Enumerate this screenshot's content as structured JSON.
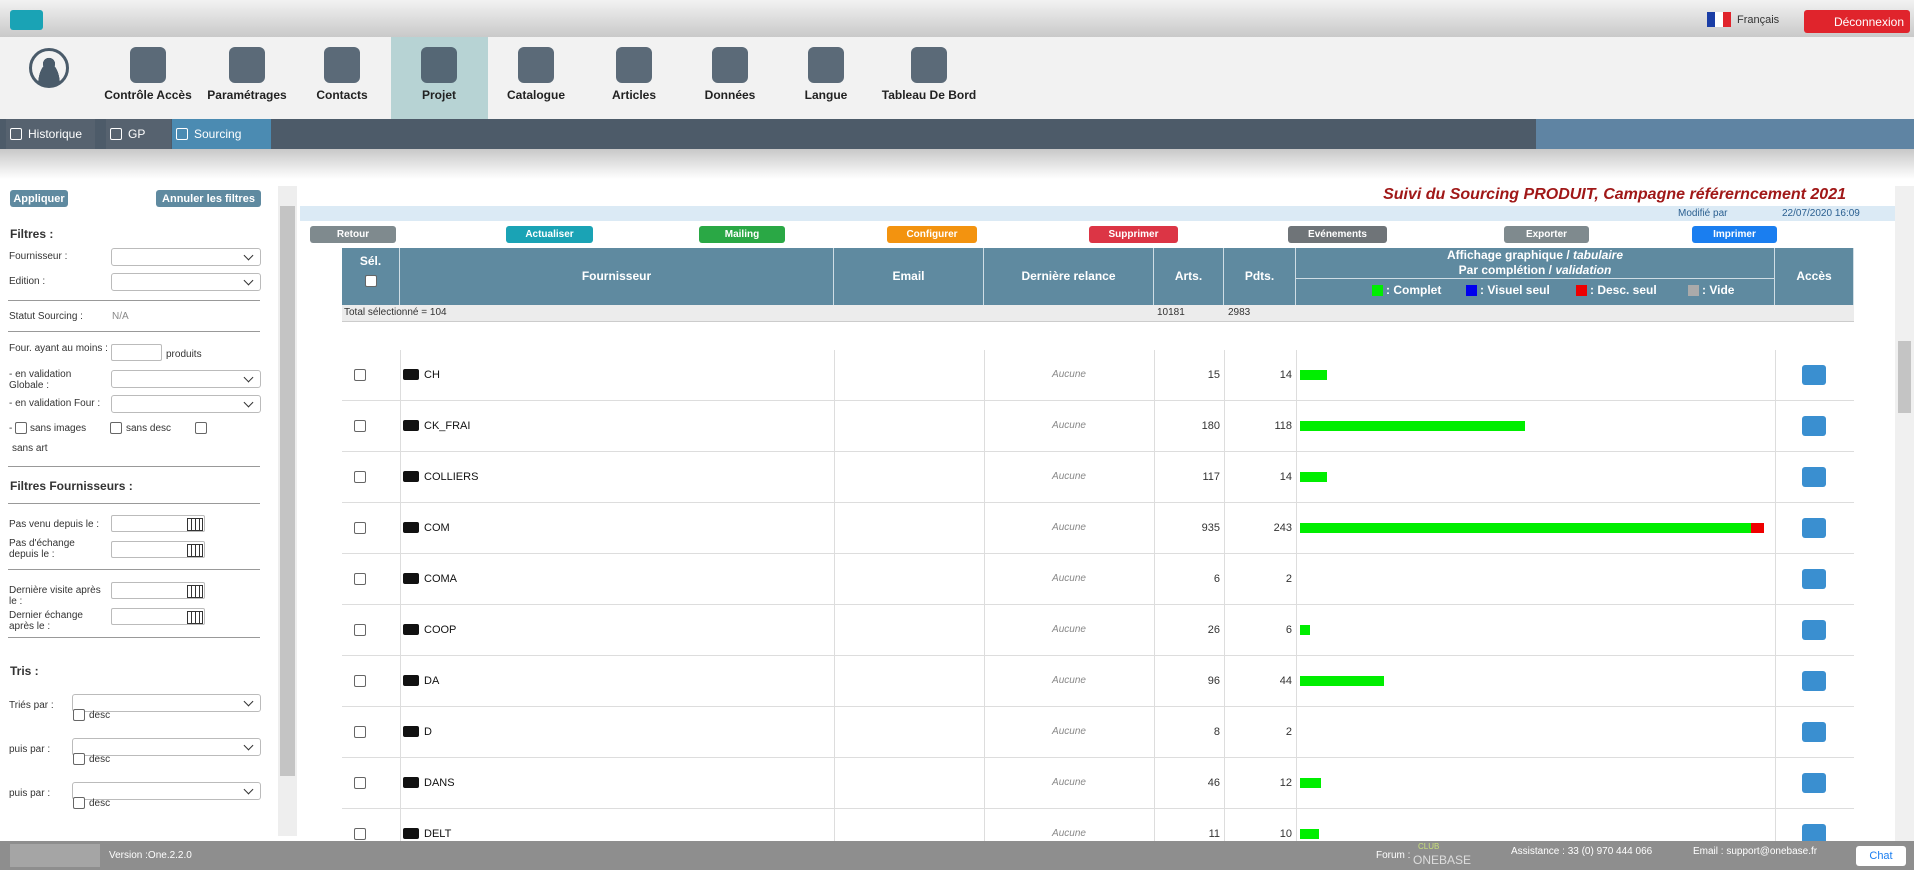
{
  "top_bar": {
    "language": "Français",
    "logout": "Déconnexion"
  },
  "nav": {
    "items": [
      "Contrôle Accès",
      "Paramétrages",
      "Contacts",
      "Projet",
      "Catalogue",
      "Articles",
      "Données",
      "Langue",
      "Tableau De Bord"
    ],
    "active_index": 3
  },
  "subnav": {
    "items": [
      "Historique",
      "GP",
      "Sourcing"
    ],
    "active_index": 2
  },
  "filters": {
    "apply": "Appliquer",
    "cancel": "Annuler les filtres",
    "title": "Filtres :",
    "supplier": "Fournisseur :",
    "edition": "Edition :",
    "status": "Statut Sourcing :",
    "status_value": "N/A",
    "min_products": "Four. ayant au moins :",
    "products": "produits",
    "global_validation": "- en validation Globale :",
    "supplier_validation": "- en validation Four :",
    "dash": "-",
    "no_images": "sans images",
    "no_desc": "sans desc",
    "no_art": "sans art",
    "supplier_filters": "Filtres Fournisseurs :",
    "not_came": "Pas venu depuis le :",
    "no_exchange": "Pas d'échange depuis le :",
    "last_visit": "Dernière visite après le :",
    "last_exchange": "Dernier échange après le :",
    "sorts": "Tris :",
    "sorted_by": "Triés par :",
    "then_by": "puis par :",
    "desc": "desc"
  },
  "main": {
    "title": "Suivi du Sourcing PRODUIT, Campagne référerncement 2021",
    "modified_by": "Modifié par",
    "modified_date": "22/07/2020 16:09",
    "buttons": [
      {
        "label": "Retour",
        "color": "#7f8a8e"
      },
      {
        "label": "Actualiser",
        "color": "#1aa3b5"
      },
      {
        "label": "Mailing",
        "color": "#2aa845"
      },
      {
        "label": "Configurer",
        "color": "#f3930f"
      },
      {
        "label": "Supprimer",
        "color": "#dc3545"
      },
      {
        "label": "Evénements",
        "color": "#6f7478"
      },
      {
        "label": "Exporter",
        "color": "#7f8a8e"
      },
      {
        "label": "Imprimer",
        "color": "#1a7ef0"
      }
    ]
  },
  "table": {
    "headers": {
      "select": "Sél.",
      "supplier": "Fournisseur",
      "email": "Email",
      "last_reminder": "Dernière relance",
      "arts": "Arts.",
      "pdts": "Pdts.",
      "graph_line1": "Affichage graphique / ",
      "graph_line1_italic": "tabulaire",
      "graph_line2": "Par complétion / ",
      "graph_line2_italic": "validation",
      "access": "Accès"
    },
    "legend": [
      {
        "name": ": Complet",
        "color": "#00ee00"
      },
      {
        "name": ": Visuel seul",
        "color": "#0000ee"
      },
      {
        "name": ": Desc. seul",
        "color": "#ee0000"
      },
      {
        "name": ": Vide",
        "color": "#aaaaaa"
      }
    ],
    "total_label": "Total sélectionné = 104",
    "total_arts": 10181,
    "total_pdts": 2983,
    "rows": [
      {
        "name": "CH",
        "relance": "Aucune",
        "arts": 15,
        "pdts": 14,
        "complet": 14,
        "desc": 0
      },
      {
        "name": "CK_FRAI",
        "relance": "Aucune",
        "arts": 180,
        "pdts": 118,
        "complet": 118,
        "desc": 0
      },
      {
        "name": "COLLIERS",
        "relance": "Aucune",
        "arts": 117,
        "pdts": 14,
        "complet": 14,
        "desc": 0
      },
      {
        "name": "COM",
        "relance": "Aucune",
        "arts": 935,
        "pdts": 243,
        "complet": 236,
        "desc": 7
      },
      {
        "name": "COMA",
        "relance": "Aucune",
        "arts": 6,
        "pdts": 2,
        "complet": 0,
        "desc": 0
      },
      {
        "name": "COOP",
        "relance": "Aucune",
        "arts": 26,
        "pdts": 6,
        "complet": 5,
        "desc": 0
      },
      {
        "name": "DA",
        "relance": "Aucune",
        "arts": 96,
        "pdts": 44,
        "complet": 44,
        "desc": 0
      },
      {
        "name": "D",
        "relance": "Aucune",
        "arts": 8,
        "pdts": 2,
        "complet": 0,
        "desc": 0
      },
      {
        "name": "DANS",
        "relance": "Aucune",
        "arts": 46,
        "pdts": 12,
        "complet": 11,
        "desc": 0
      },
      {
        "name": "DELT",
        "relance": "Aucune",
        "arts": 11,
        "pdts": 10,
        "complet": 10,
        "desc": 0
      }
    ]
  },
  "footer": {
    "version": "Version :One.2.2.0",
    "forum": "Forum :",
    "club": "CLUB",
    "brand": "ONEBASE",
    "assistance": "Assistance : 33 (0) 970 444 066",
    "email": "Email : support@onebase.fr",
    "chat": "Chat"
  }
}
